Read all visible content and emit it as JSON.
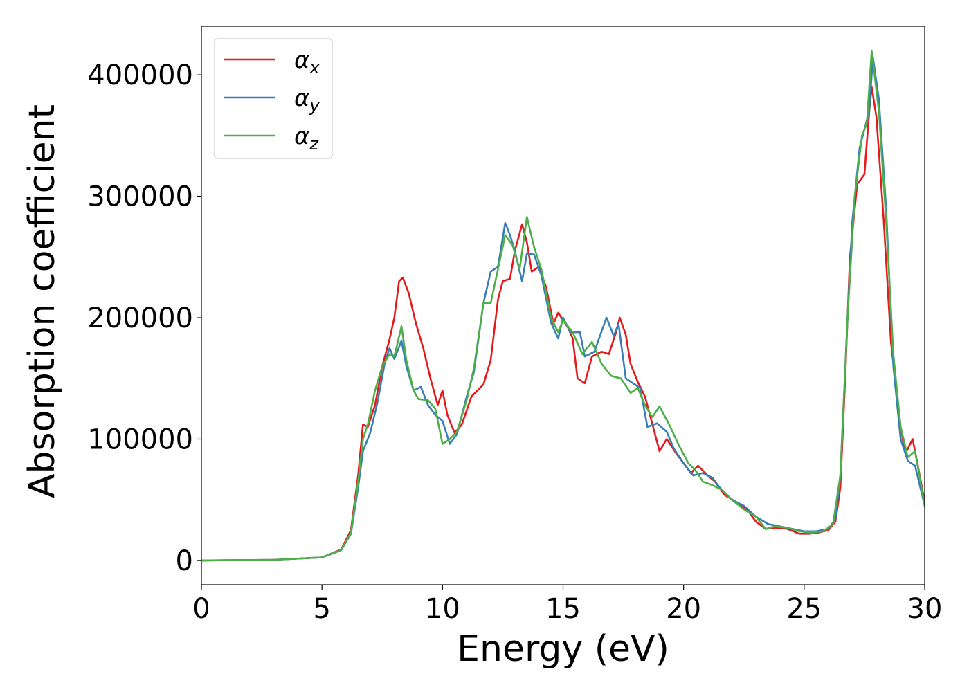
{
  "chart_data": {
    "type": "line",
    "xlabel": "Energy (eV)",
    "ylabel": "Absorption coefficient",
    "xlim": [
      0,
      30
    ],
    "ylim": [
      -20000,
      440000
    ],
    "xticks": [
      0,
      5,
      10,
      15,
      20,
      25,
      30
    ],
    "yticks": [
      0,
      100000,
      200000,
      300000,
      400000
    ],
    "grid": false,
    "legend_position": "top-left",
    "series": [
      {
        "name": "α",
        "subscript": "x",
        "color": "#e41a1c",
        "points": [
          [
            0,
            0
          ],
          [
            3,
            500
          ],
          [
            5,
            2500
          ],
          [
            5.8,
            9000
          ],
          [
            6.2,
            25000
          ],
          [
            6.5,
            70000
          ],
          [
            6.7,
            112000
          ],
          [
            6.9,
            110000
          ],
          [
            7.2,
            128000
          ],
          [
            7.5,
            160000
          ],
          [
            7.8,
            182000
          ],
          [
            8,
            200000
          ],
          [
            8.2,
            230000
          ],
          [
            8.35,
            233000
          ],
          [
            8.6,
            220000
          ],
          [
            8.9,
            195000
          ],
          [
            9.2,
            175000
          ],
          [
            9.5,
            150000
          ],
          [
            9.8,
            128000
          ],
          [
            10,
            140000
          ],
          [
            10.2,
            120000
          ],
          [
            10.5,
            105000
          ],
          [
            10.8,
            112000
          ],
          [
            11.2,
            135000
          ],
          [
            11.7,
            145000
          ],
          [
            12,
            165000
          ],
          [
            12.3,
            215000
          ],
          [
            12.5,
            230000
          ],
          [
            12.8,
            232000
          ],
          [
            13,
            255000
          ],
          [
            13.3,
            277000
          ],
          [
            13.5,
            262000
          ],
          [
            13.7,
            238000
          ],
          [
            14,
            242000
          ],
          [
            14.3,
            225000
          ],
          [
            14.6,
            195000
          ],
          [
            14.8,
            204000
          ],
          [
            15.2,
            192000
          ],
          [
            15.4,
            183000
          ],
          [
            15.6,
            150000
          ],
          [
            15.9,
            146000
          ],
          [
            16.2,
            168000
          ],
          [
            16.6,
            172000
          ],
          [
            16.9,
            170000
          ],
          [
            17.2,
            188000
          ],
          [
            17.35,
            200000
          ],
          [
            17.6,
            186000
          ],
          [
            17.8,
            162000
          ],
          [
            18.1,
            147000
          ],
          [
            18.4,
            135000
          ],
          [
            18.8,
            105000
          ],
          [
            19,
            90000
          ],
          [
            19.3,
            100000
          ],
          [
            19.7,
            88000
          ],
          [
            20,
            80000
          ],
          [
            20.3,
            72000
          ],
          [
            20.6,
            78000
          ],
          [
            21,
            70000
          ],
          [
            21.3,
            65000
          ],
          [
            21.7,
            54000
          ],
          [
            22.2,
            48000
          ],
          [
            22.7,
            40000
          ],
          [
            23,
            32000
          ],
          [
            23.4,
            26000
          ],
          [
            23.8,
            27000
          ],
          [
            24.3,
            26000
          ],
          [
            24.8,
            22000
          ],
          [
            25.2,
            22000
          ],
          [
            25.6,
            23000
          ],
          [
            26,
            25000
          ],
          [
            26.3,
            32000
          ],
          [
            26.5,
            60000
          ],
          [
            26.7,
            150000
          ],
          [
            26.9,
            250000
          ],
          [
            27.2,
            310000
          ],
          [
            27.5,
            318000
          ],
          [
            27.7,
            370000
          ],
          [
            27.8,
            390000
          ],
          [
            28,
            365000
          ],
          [
            28.3,
            280000
          ],
          [
            28.6,
            180000
          ],
          [
            29,
            110000
          ],
          [
            29.2,
            88000
          ],
          [
            29.5,
            100000
          ],
          [
            29.7,
            80000
          ],
          [
            30,
            48000
          ]
        ]
      },
      {
        "name": "α",
        "subscript": "y",
        "color": "#377eb8",
        "points": [
          [
            0,
            0
          ],
          [
            3,
            500
          ],
          [
            5,
            2500
          ],
          [
            5.8,
            8500
          ],
          [
            6.2,
            22000
          ],
          [
            6.5,
            60000
          ],
          [
            6.7,
            90000
          ],
          [
            7,
            105000
          ],
          [
            7.3,
            130000
          ],
          [
            7.6,
            162000
          ],
          [
            7.8,
            175000
          ],
          [
            8,
            166000
          ],
          [
            8.3,
            181000
          ],
          [
            8.5,
            160000
          ],
          [
            8.8,
            140000
          ],
          [
            9.1,
            143000
          ],
          [
            9.4,
            128000
          ],
          [
            9.7,
            120000
          ],
          [
            10,
            115000
          ],
          [
            10.3,
            96000
          ],
          [
            10.6,
            104000
          ],
          [
            11,
            135000
          ],
          [
            11.3,
            155000
          ],
          [
            11.7,
            212000
          ],
          [
            12,
            238000
          ],
          [
            12.3,
            242000
          ],
          [
            12.6,
            278000
          ],
          [
            12.8,
            268000
          ],
          [
            13,
            255000
          ],
          [
            13.3,
            230000
          ],
          [
            13.5,
            253000
          ],
          [
            13.8,
            252000
          ],
          [
            14.1,
            235000
          ],
          [
            14.5,
            196000
          ],
          [
            14.8,
            183000
          ],
          [
            15,
            200000
          ],
          [
            15.3,
            188000
          ],
          [
            15.7,
            188000
          ],
          [
            15.9,
            168000
          ],
          [
            16.3,
            172000
          ],
          [
            16.8,
            200000
          ],
          [
            17.1,
            185000
          ],
          [
            17.3,
            195000
          ],
          [
            17.6,
            150000
          ],
          [
            17.9,
            146000
          ],
          [
            18.2,
            142000
          ],
          [
            18.5,
            110000
          ],
          [
            18.9,
            113000
          ],
          [
            19.3,
            106000
          ],
          [
            19.6,
            92000
          ],
          [
            20,
            80000
          ],
          [
            20.4,
            70000
          ],
          [
            20.8,
            72000
          ],
          [
            21.2,
            68000
          ],
          [
            21.5,
            60000
          ],
          [
            22,
            50000
          ],
          [
            22.5,
            45000
          ],
          [
            23,
            36000
          ],
          [
            23.5,
            30000
          ],
          [
            24,
            28000
          ],
          [
            24.5,
            26000
          ],
          [
            25,
            24000
          ],
          [
            25.5,
            24000
          ],
          [
            26,
            26000
          ],
          [
            26.3,
            34000
          ],
          [
            26.5,
            70000
          ],
          [
            26.8,
            200000
          ],
          [
            27,
            280000
          ],
          [
            27.3,
            340000
          ],
          [
            27.5,
            355000
          ],
          [
            27.7,
            370000
          ],
          [
            27.85,
            415000
          ],
          [
            28.1,
            380000
          ],
          [
            28.4,
            290000
          ],
          [
            28.7,
            160000
          ],
          [
            29,
            100000
          ],
          [
            29.3,
            82000
          ],
          [
            29.6,
            78000
          ],
          [
            30,
            45000
          ]
        ]
      },
      {
        "name": "α",
        "subscript": "z",
        "color": "#4daf4a",
        "points": [
          [
            0,
            0
          ],
          [
            3,
            500
          ],
          [
            5,
            2500
          ],
          [
            5.8,
            8500
          ],
          [
            6.2,
            23000
          ],
          [
            6.5,
            65000
          ],
          [
            6.7,
            100000
          ],
          [
            6.9,
            112000
          ],
          [
            7.2,
            140000
          ],
          [
            7.5,
            160000
          ],
          [
            7.8,
            170000
          ],
          [
            8,
            168000
          ],
          [
            8.3,
            193000
          ],
          [
            8.5,
            165000
          ],
          [
            8.8,
            140000
          ],
          [
            9,
            133000
          ],
          [
            9.4,
            132000
          ],
          [
            9.7,
            125000
          ],
          [
            10,
            96000
          ],
          [
            10.3,
            100000
          ],
          [
            10.6,
            106000
          ],
          [
            11,
            132000
          ],
          [
            11.3,
            158000
          ],
          [
            11.7,
            212000
          ],
          [
            12,
            212000
          ],
          [
            12.3,
            240000
          ],
          [
            12.6,
            268000
          ],
          [
            12.9,
            260000
          ],
          [
            13.2,
            240000
          ],
          [
            13.5,
            283000
          ],
          [
            13.8,
            258000
          ],
          [
            14.1,
            240000
          ],
          [
            14.5,
            200000
          ],
          [
            14.8,
            188000
          ],
          [
            15,
            198000
          ],
          [
            15.4,
            188000
          ],
          [
            15.8,
            170000
          ],
          [
            16.2,
            180000
          ],
          [
            16.6,
            162000
          ],
          [
            17,
            152000
          ],
          [
            17.4,
            150000
          ],
          [
            17.8,
            138000
          ],
          [
            18.1,
            142000
          ],
          [
            18.4,
            128000
          ],
          [
            18.7,
            118000
          ],
          [
            19,
            127000
          ],
          [
            19.4,
            112000
          ],
          [
            19.8,
            95000
          ],
          [
            20.2,
            80000
          ],
          [
            20.5,
            74000
          ],
          [
            20.8,
            65000
          ],
          [
            21.2,
            62000
          ],
          [
            21.6,
            58000
          ],
          [
            22,
            50000
          ],
          [
            22.5,
            42000
          ],
          [
            23,
            36000
          ],
          [
            23.4,
            26000
          ],
          [
            23.8,
            28000
          ],
          [
            24.3,
            27000
          ],
          [
            24.8,
            24000
          ],
          [
            25.3,
            23000
          ],
          [
            25.8,
            24000
          ],
          [
            26.2,
            30000
          ],
          [
            26.5,
            70000
          ],
          [
            26.8,
            200000
          ],
          [
            27.1,
            300000
          ],
          [
            27.4,
            350000
          ],
          [
            27.6,
            360000
          ],
          [
            27.8,
            420000
          ],
          [
            28.1,
            370000
          ],
          [
            28.4,
            280000
          ],
          [
            28.7,
            170000
          ],
          [
            29,
            110000
          ],
          [
            29.3,
            85000
          ],
          [
            29.6,
            90000
          ],
          [
            30,
            45000
          ]
        ]
      }
    ]
  }
}
